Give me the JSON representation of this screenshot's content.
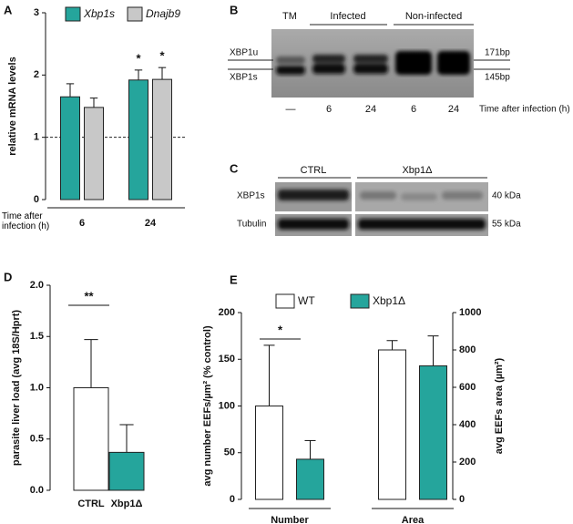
{
  "panel_labels": [
    "A",
    "B",
    "C",
    "D",
    "E"
  ],
  "chart_data": [
    {
      "type": "bar",
      "y_label": "relative mRNA levels",
      "x_label": "Time after infection (h)",
      "categories": [
        "6",
        "24"
      ],
      "series": [
        {
          "name": "Xbp1s",
          "color": "#25a59c",
          "values": [
            1.65,
            1.92
          ],
          "errors": [
            0.21,
            0.16
          ]
        },
        {
          "name": "Dnajb9",
          "color": "#c8c8c8",
          "values": [
            1.48,
            1.93
          ],
          "errors": [
            0.15,
            0.19
          ]
        }
      ],
      "ylim": [
        0,
        3
      ],
      "yticks": [
        0,
        1,
        2,
        3
      ],
      "reference_line": 1,
      "annotations": [
        "*",
        "*"
      ]
    },
    {
      "type": "bar",
      "y_label": "parasite liver load (avg 18S/Hprt)",
      "categories": [
        "CTRL",
        "Xbp1Δ"
      ],
      "series": [
        {
          "colors": [
            "#ffffff",
            "#25a59c"
          ],
          "values": [
            1.0,
            0.37
          ],
          "errors": [
            0.47,
            0.27
          ]
        }
      ],
      "ylim": [
        0,
        2
      ],
      "yticks": [
        {
          "value": 0,
          "label": "0.0"
        },
        {
          "value": 0.5,
          "label": "0.5"
        },
        {
          "value": 1,
          "label": "1.0"
        },
        {
          "value": 1.5,
          "label": "1.5"
        },
        {
          "value": 2,
          "label": "2.0"
        }
      ],
      "annotations": [
        "**"
      ]
    },
    {
      "type": "bar",
      "y_label": "avg number EEFs/µm² (% control)",
      "y2_label": "avg EEFs area (µm²)",
      "categories": [
        "Number",
        "Area"
      ],
      "category_axis": [
        "y",
        "y2"
      ],
      "series": [
        {
          "name": "WT",
          "color": "#ffffff",
          "values": [
            100,
            800
          ],
          "errors": [
            65,
            50
          ]
        },
        {
          "name": "Xbp1Δ",
          "color": "#25a59c",
          "values": [
            43,
            715
          ],
          "errors": [
            20,
            160
          ]
        }
      ],
      "ylim": [
        0,
        200
      ],
      "yticks": [
        0,
        50,
        100,
        150,
        200
      ],
      "y2lim": [
        0,
        1000
      ],
      "y2ticks": [
        0,
        200,
        400,
        600,
        800,
        1000
      ],
      "annotations": [
        "*"
      ]
    }
  ],
  "gel": {
    "groups": [
      "TM",
      "Infected",
      "Non-infected"
    ],
    "bands": [
      "XBP1u",
      "XBP1s"
    ],
    "sizes": [
      "171bp",
      "145bp"
    ],
    "lanes": [
      "—",
      "6",
      "24",
      "6",
      "24"
    ],
    "lane_axis_label": "Time after infection (h)"
  },
  "blot": {
    "groups": [
      "CTRL",
      "Xbp1Δ"
    ],
    "rows": [
      "XBP1s",
      "Tubulin"
    ],
    "sizes": [
      "40 kDa",
      "55 kDa"
    ]
  }
}
